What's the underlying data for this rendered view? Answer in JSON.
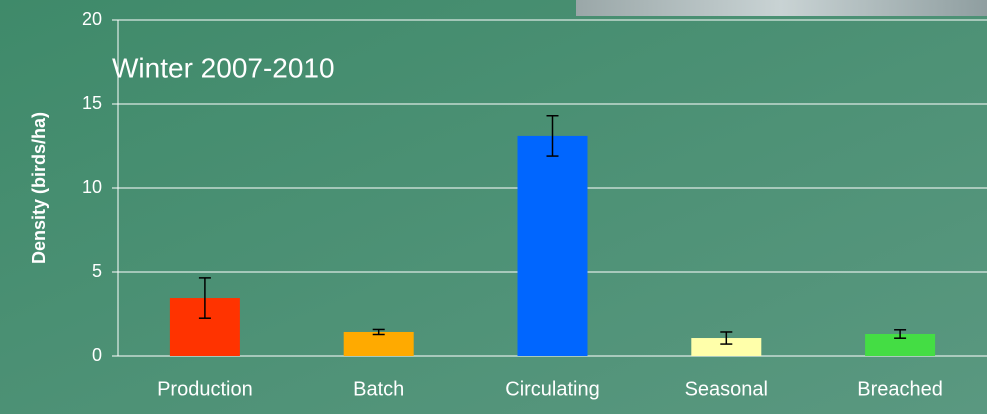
{
  "chart_data": {
    "type": "bar",
    "title": "Winter 2007-2010",
    "y_label": "Density (birds/ha)",
    "categories": [
      "Production",
      "Batch",
      "Circulating",
      "Seasonal",
      "Breached"
    ],
    "values": [
      3.45,
      1.43,
      13.1,
      1.07,
      1.31
    ],
    "errors": [
      1.2,
      0.15,
      1.2,
      0.36,
      0.25
    ],
    "colors": [
      "#ff3300",
      "#ffaa00",
      "#0066ff",
      "#ffffaa",
      "#44dd44"
    ],
    "ylim": [
      0,
      20
    ],
    "yticks": [
      0,
      5,
      10,
      15,
      20
    ],
    "grid": true
  }
}
